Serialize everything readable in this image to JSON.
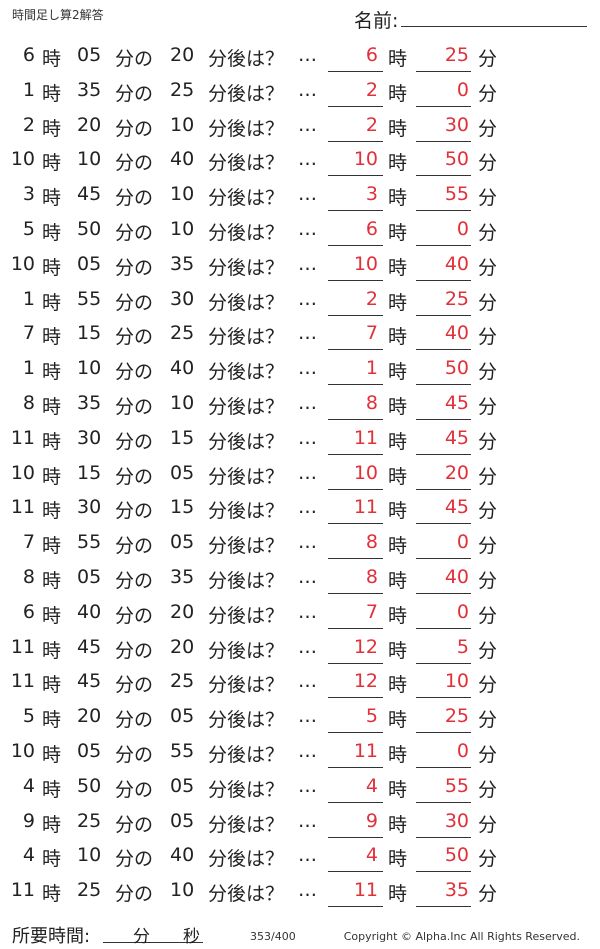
{
  "title": "時間足し算2解答",
  "name_label": "名前:",
  "words": {
    "hour": "時",
    "min_no": "分の",
    "after": "分後は？",
    "ellipsis": "…",
    "min": "分"
  },
  "problems": [
    {
      "h": "6",
      "m": "05",
      "add": "20",
      "ah": "6",
      "am": "25"
    },
    {
      "h": "1",
      "m": "35",
      "add": "25",
      "ah": "2",
      "am": "0"
    },
    {
      "h": "2",
      "m": "20",
      "add": "10",
      "ah": "2",
      "am": "30"
    },
    {
      "h": "10",
      "m": "10",
      "add": "40",
      "ah": "10",
      "am": "50"
    },
    {
      "h": "3",
      "m": "45",
      "add": "10",
      "ah": "3",
      "am": "55"
    },
    {
      "h": "5",
      "m": "50",
      "add": "10",
      "ah": "6",
      "am": "0"
    },
    {
      "h": "10",
      "m": "05",
      "add": "35",
      "ah": "10",
      "am": "40"
    },
    {
      "h": "1",
      "m": "55",
      "add": "30",
      "ah": "2",
      "am": "25"
    },
    {
      "h": "7",
      "m": "15",
      "add": "25",
      "ah": "7",
      "am": "40"
    },
    {
      "h": "1",
      "m": "10",
      "add": "40",
      "ah": "1",
      "am": "50"
    },
    {
      "h": "8",
      "m": "35",
      "add": "10",
      "ah": "8",
      "am": "45"
    },
    {
      "h": "11",
      "m": "30",
      "add": "15",
      "ah": "11",
      "am": "45"
    },
    {
      "h": "10",
      "m": "15",
      "add": "05",
      "ah": "10",
      "am": "20"
    },
    {
      "h": "11",
      "m": "30",
      "add": "15",
      "ah": "11",
      "am": "45"
    },
    {
      "h": "7",
      "m": "55",
      "add": "05",
      "ah": "8",
      "am": "0"
    },
    {
      "h": "8",
      "m": "05",
      "add": "35",
      "ah": "8",
      "am": "40"
    },
    {
      "h": "6",
      "m": "40",
      "add": "20",
      "ah": "7",
      "am": "0"
    },
    {
      "h": "11",
      "m": "45",
      "add": "20",
      "ah": "12",
      "am": "5"
    },
    {
      "h": "11",
      "m": "45",
      "add": "25",
      "ah": "12",
      "am": "10"
    },
    {
      "h": "5",
      "m": "20",
      "add": "05",
      "ah": "5",
      "am": "25"
    },
    {
      "h": "10",
      "m": "05",
      "add": "55",
      "ah": "11",
      "am": "0"
    },
    {
      "h": "4",
      "m": "50",
      "add": "05",
      "ah": "4",
      "am": "55"
    },
    {
      "h": "9",
      "m": "25",
      "add": "05",
      "ah": "9",
      "am": "30"
    },
    {
      "h": "4",
      "m": "10",
      "add": "40",
      "ah": "4",
      "am": "50"
    },
    {
      "h": "11",
      "m": "25",
      "add": "10",
      "ah": "11",
      "am": "35"
    }
  ],
  "footer": {
    "time_label": "所要時間:",
    "min_unit": "分",
    "sec_unit": "秒",
    "page": "353/400",
    "copyright": "Copyright ©  Alpha.Inc All Rights Reserved."
  },
  "colors": {
    "answer": "#e0303a"
  }
}
